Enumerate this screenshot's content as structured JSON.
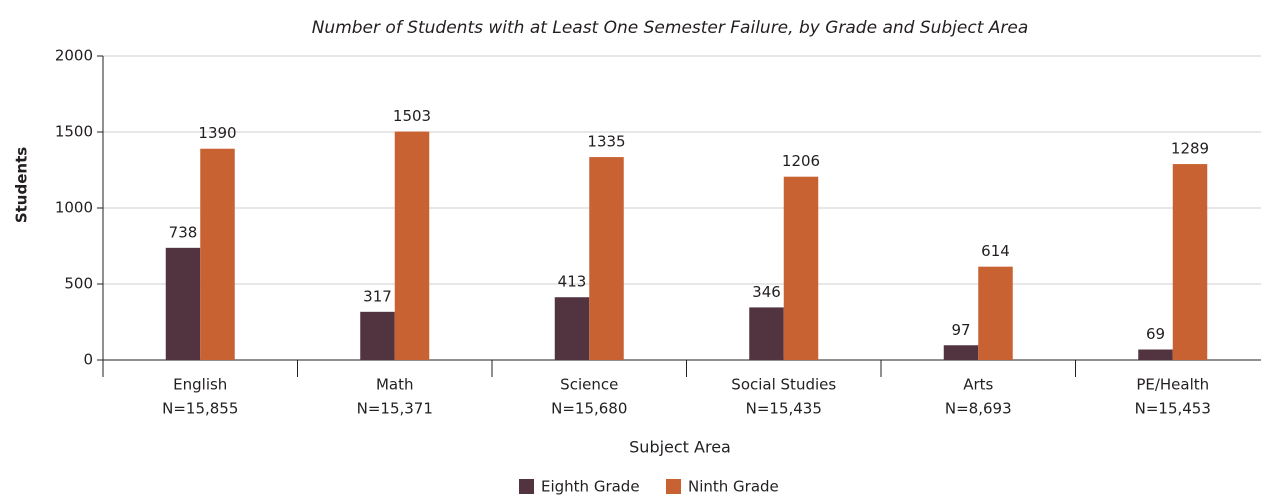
{
  "chart_data": {
    "type": "bar",
    "title": "Number of Students with at Least One Semester Failure, by Grade and Subject Area",
    "x_label": "Subject Area",
    "y_label": "Students",
    "categories": [
      "English",
      "Math",
      "Science",
      "Social Studies",
      "Arts",
      "PE/Health"
    ],
    "category_notes": [
      "N=15,855",
      "N=15,371",
      "N=15,680",
      "N=15,435",
      "N=8,693",
      "N=15,453"
    ],
    "series": [
      {
        "name": "Eighth Grade",
        "color": "#523440",
        "values": [
          738,
          317,
          413,
          346,
          97,
          69
        ]
      },
      {
        "name": "Ninth Grade",
        "color": "#c96232",
        "values": [
          1390,
          1503,
          1335,
          1206,
          614,
          1289
        ]
      }
    ],
    "ylim": [
      0,
      2000
    ],
    "yticks": [
      0,
      500,
      1000,
      1500,
      2000
    ],
    "grid": true
  }
}
